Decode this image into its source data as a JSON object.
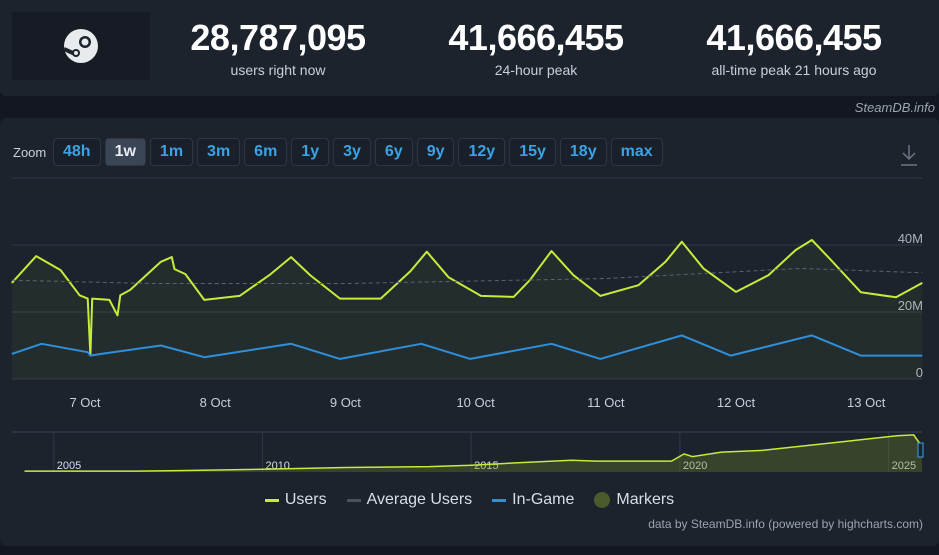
{
  "stats": [
    {
      "value": "28,787,095",
      "label": "users right now"
    },
    {
      "value": "41,666,455",
      "label": "24-hour peak"
    },
    {
      "value": "41,666,455",
      "label": "all-time peak 21 hours ago"
    }
  ],
  "brand_credit": "SteamDB.info",
  "zoom": {
    "label": "Zoom",
    "buttons": [
      "48h",
      "1w",
      "1m",
      "3m",
      "6m",
      "1y",
      "3y",
      "6y",
      "9y",
      "12y",
      "15y",
      "18y",
      "max"
    ],
    "active": "1w"
  },
  "legend": [
    {
      "label": "Users",
      "color": "#c6ec3a"
    },
    {
      "label": "Average Users",
      "color": "#4a525c"
    },
    {
      "label": "In-Game",
      "color": "#2f8fd8"
    },
    {
      "label": "Markers",
      "color": "#4a5a2c"
    }
  ],
  "credit": "data by SteamDB.info (powered by highcharts.com)",
  "chart_data": {
    "type": "line",
    "y_ticks": [
      "0",
      "20M",
      "40M"
    ],
    "y_values": [
      0,
      20000000,
      40000000
    ],
    "ylim": [
      0,
      60000000
    ],
    "x_ticks": [
      "7 Oct",
      "8 Oct",
      "9 Oct",
      "10 Oct",
      "11 Oct",
      "12 Oct",
      "13 Oct"
    ],
    "x_tick_dates": [
      "2025-10-07",
      "2025-10-08",
      "2025-10-09",
      "2025-10-10",
      "2025-10-11",
      "2025-10-12",
      "2025-10-13"
    ],
    "xlim": [
      "2025-10-06T10:30",
      "2025-10-13T10:20"
    ],
    "grid": true,
    "legend_position": "bottom",
    "series": [
      {
        "name": "Users",
        "color": "#c6ec3a",
        "unit": "M",
        "points": [
          [
            "2025-10-06T10:30",
            28.7
          ],
          [
            "2025-10-06T15:00",
            36.7
          ],
          [
            "2025-10-06T19:30",
            32.5
          ],
          [
            "2025-10-06T23:00",
            25
          ],
          [
            "2025-10-07T00:30",
            24
          ],
          [
            "2025-10-07T01:00",
            7
          ],
          [
            "2025-10-07T01:20",
            24
          ],
          [
            "2025-10-07T04:30",
            23.6
          ],
          [
            "2025-10-07T06:00",
            19
          ],
          [
            "2025-10-07T06:30",
            25
          ],
          [
            "2025-10-07T08:20",
            26.6
          ],
          [
            "2025-10-07T14:00",
            35
          ],
          [
            "2025-10-07T16:00",
            36.4
          ],
          [
            "2025-10-07T16:30",
            32.8
          ],
          [
            "2025-10-07T18:30",
            31.3
          ],
          [
            "2025-10-07T22:00",
            23.6
          ],
          [
            "2025-10-08T04:30",
            24.8
          ],
          [
            "2025-10-08T10:00",
            31
          ],
          [
            "2025-10-08T14:00",
            36.4
          ],
          [
            "2025-10-08T17:30",
            31
          ],
          [
            "2025-10-08T23:00",
            24
          ],
          [
            "2025-10-09T06:30",
            24
          ],
          [
            "2025-10-09T12:00",
            32.2
          ],
          [
            "2025-10-09T15:00",
            38
          ],
          [
            "2025-10-09T19:00",
            30.4
          ],
          [
            "2025-10-10T01:00",
            24.8
          ],
          [
            "2025-10-10T07:00",
            24.5
          ],
          [
            "2025-10-10T10:00",
            29.5
          ],
          [
            "2025-10-10T14:00",
            38.2
          ],
          [
            "2025-10-10T18:00",
            31
          ],
          [
            "2025-10-10T23:00",
            24.8
          ],
          [
            "2025-10-11T06:00",
            28
          ],
          [
            "2025-10-11T11:00",
            35
          ],
          [
            "2025-10-11T14:00",
            41
          ],
          [
            "2025-10-11T18:00",
            33
          ],
          [
            "2025-10-12T00:00",
            26
          ],
          [
            "2025-10-12T06:00",
            31
          ],
          [
            "2025-10-12T11:00",
            38.5
          ],
          [
            "2025-10-12T14:00",
            41.5
          ],
          [
            "2025-10-12T17:00",
            36.4
          ],
          [
            "2025-10-12T23:00",
            25.9
          ],
          [
            "2025-10-13T05:30",
            24.4
          ],
          [
            "2025-10-13T10:20",
            28.7
          ]
        ]
      },
      {
        "name": "Average Users",
        "color": "#5a626c",
        "dashed": true,
        "unit": "M",
        "points": [
          [
            "2025-10-06T10:30",
            29.5
          ],
          [
            "2025-10-07T12:00",
            28.5
          ],
          [
            "2025-10-09T00:00",
            28.5
          ],
          [
            "2025-10-11T00:00",
            30
          ],
          [
            "2025-10-12T12:00",
            33
          ],
          [
            "2025-10-13T10:20",
            31.7
          ]
        ]
      },
      {
        "name": "In-Game",
        "color": "#2f8fd8",
        "unit": "M",
        "points": [
          [
            "2025-10-06T10:30",
            7.5
          ],
          [
            "2025-10-06T16:00",
            10.5
          ],
          [
            "2025-10-07T00:30",
            8
          ],
          [
            "2025-10-07T01:00",
            7
          ],
          [
            "2025-10-07T03:00",
            7.5
          ],
          [
            "2025-10-07T14:00",
            10
          ],
          [
            "2025-10-07T22:00",
            6.5
          ],
          [
            "2025-10-08T14:00",
            10.5
          ],
          [
            "2025-10-08T23:00",
            6
          ],
          [
            "2025-10-09T14:00",
            10.5
          ],
          [
            "2025-10-09T23:00",
            6
          ],
          [
            "2025-10-10T14:00",
            10.5
          ],
          [
            "2025-10-10T23:00",
            6
          ],
          [
            "2025-10-11T14:00",
            13
          ],
          [
            "2025-10-11T23:00",
            7
          ],
          [
            "2025-10-12T14:00",
            13
          ],
          [
            "2025-10-12T23:00",
            7
          ],
          [
            "2025-10-13T10:20",
            7
          ]
        ]
      }
    ],
    "navigator": {
      "x_ticks": [
        "2005",
        "2010",
        "2015",
        "2020",
        "2025"
      ],
      "xlim": [
        2004,
        2025.8
      ],
      "ylim": [
        0,
        42
      ],
      "points": [
        [
          2004.3,
          1
        ],
        [
          2004.4,
          1
        ],
        [
          2006.4,
          1
        ],
        [
          2007.0,
          1
        ],
        [
          2008.0,
          1.5
        ],
        [
          2010,
          3
        ],
        [
          2012,
          5
        ],
        [
          2014,
          6
        ],
        [
          2015,
          7.5
        ],
        [
          2016,
          10
        ],
        [
          2017.4,
          13
        ],
        [
          2018,
          12
        ],
        [
          2019.8,
          12
        ],
        [
          2020.1,
          20
        ],
        [
          2020.3,
          17
        ],
        [
          2021,
          22
        ],
        [
          2022,
          24
        ],
        [
          2023,
          29
        ],
        [
          2024,
          34
        ],
        [
          2025.2,
          40
        ],
        [
          2025.6,
          41
        ],
        [
          2025.8,
          28
        ]
      ]
    }
  }
}
